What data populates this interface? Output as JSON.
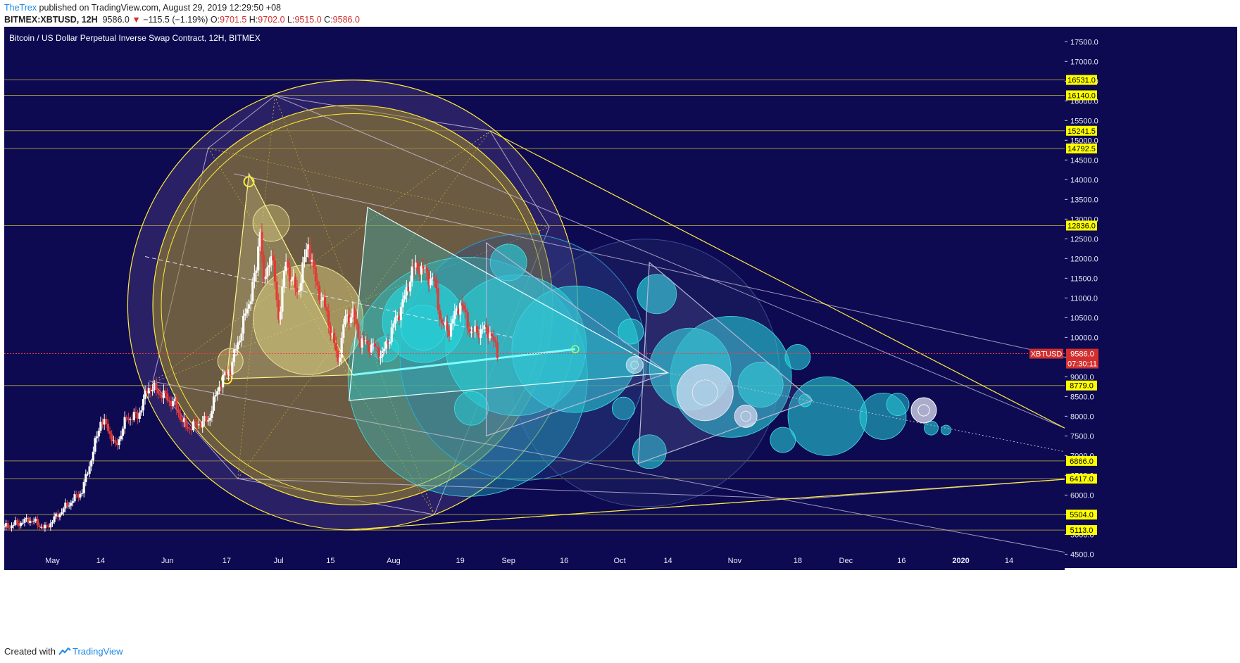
{
  "header": {
    "author": "TheTrex",
    "published": " published on TradingView.com, August 29, 2019 12:29:50 +08",
    "symbol": "BITMEX:XBTUSD, 12H",
    "price": "9586.0",
    "change": "−115.5 (−1.19%)",
    "o_label": "O:",
    "o_val": "9701.5",
    "h_label": "H:",
    "h_val": "9702.0",
    "l_label": "L:",
    "l_val": "9515.0",
    "c_label": "C:",
    "c_val": "9586.0"
  },
  "footer": {
    "created": "Created with",
    "brand": "TradingView"
  },
  "colors": {
    "background": "#0d0a52",
    "bull": "#ffffff",
    "bear": "#e53935",
    "yellow": "#ffeb3b",
    "cyan": "#26d7e5",
    "price_line": "#ff3b3b"
  },
  "chart_data": {
    "type": "candlestick",
    "title": "Bitcoin / US Dollar Perpetual Inverse Swap Contract, 12H, BITMEX",
    "ylim": [
      4150,
      17880
    ],
    "x_range": [
      "2019-04-18",
      "2020-01-29"
    ],
    "y_ticks": [
      4500,
      5000,
      5500,
      6000,
      6500,
      7000,
      7500,
      8000,
      8500,
      9000,
      9500,
      10000,
      10500,
      11000,
      11500,
      12000,
      12500,
      13000,
      13500,
      14000,
      14500,
      15000,
      15500,
      16000,
      16500,
      17000,
      17500
    ],
    "x_ticks": [
      {
        "date": "2019-05-01",
        "label": "May"
      },
      {
        "date": "2019-05-14",
        "label": "14"
      },
      {
        "date": "2019-06-01",
        "label": "Jun"
      },
      {
        "date": "2019-06-17",
        "label": "17"
      },
      {
        "date": "2019-07-01",
        "label": "Jul"
      },
      {
        "date": "2019-07-15",
        "label": "15"
      },
      {
        "date": "2019-08-01",
        "label": "Aug"
      },
      {
        "date": "2019-08-19",
        "label": "19"
      },
      {
        "date": "2019-09-01",
        "label": "Sep"
      },
      {
        "date": "2019-09-16",
        "label": "16"
      },
      {
        "date": "2019-10-01",
        "label": "Oct"
      },
      {
        "date": "2019-10-14",
        "label": "14"
      },
      {
        "date": "2019-11-01",
        "label": "Nov"
      },
      {
        "date": "2019-11-18",
        "label": "18"
      },
      {
        "date": "2019-12-01",
        "label": "Dec"
      },
      {
        "date": "2019-12-16",
        "label": "16"
      },
      {
        "date": "2020-01-01",
        "label": "2020"
      },
      {
        "date": "2020-01-14",
        "label": "14"
      }
    ],
    "price_levels": [
      16531.0,
      16140.0,
      15241.5,
      14792.5,
      12836.0,
      8779.0,
      6866.0,
      6417.0,
      5504.0,
      5113.0
    ],
    "last_price": {
      "symbol": "XBTUSD",
      "value": 9586.0,
      "countdown": "07:30:11"
    },
    "closes_anchor": [
      [
        "2019-04-18",
        5180
      ],
      [
        "2019-04-25",
        5380
      ],
      [
        "2019-04-29",
        5150
      ],
      [
        "2019-05-04",
        5650
      ],
      [
        "2019-05-09",
        6100
      ],
      [
        "2019-05-12",
        7100
      ],
      [
        "2019-05-14",
        7900
      ],
      [
        "2019-05-16",
        7700
      ],
      [
        "2019-05-18",
        7200
      ],
      [
        "2019-05-21",
        7950
      ],
      [
        "2019-05-24",
        8000
      ],
      [
        "2019-05-27",
        8750
      ],
      [
        "2019-05-30",
        8600
      ],
      [
        "2019-06-03",
        8300
      ],
      [
        "2019-06-06",
        7700
      ],
      [
        "2019-06-09",
        7800
      ],
      [
        "2019-06-12",
        7900
      ],
      [
        "2019-06-15",
        8800
      ],
      [
        "2019-06-18",
        9200
      ],
      [
        "2019-06-21",
        10200
      ],
      [
        "2019-06-23",
        10900
      ],
      [
        "2019-06-25",
        11700
      ],
      [
        "2019-06-26",
        12900
      ],
      [
        "2019-06-27",
        11300
      ],
      [
        "2019-06-29",
        12200
      ],
      [
        "2019-07-01",
        10500
      ],
      [
        "2019-07-03",
        11900
      ],
      [
        "2019-07-06",
        11100
      ],
      [
        "2019-07-09",
        12400
      ],
      [
        "2019-07-11",
        11400
      ],
      [
        "2019-07-14",
        10600
      ],
      [
        "2019-07-17",
        9400
      ],
      [
        "2019-07-19",
        10500
      ],
      [
        "2019-07-21",
        10600
      ],
      [
        "2019-07-23",
        9900
      ],
      [
        "2019-07-26",
        9800
      ],
      [
        "2019-07-29",
        9550
      ],
      [
        "2019-08-01",
        10300
      ],
      [
        "2019-08-04",
        11000
      ],
      [
        "2019-08-06",
        11700
      ],
      [
        "2019-08-08",
        11800
      ],
      [
        "2019-08-10",
        11600
      ],
      [
        "2019-08-12",
        11400
      ],
      [
        "2019-08-14",
        10300
      ],
      [
        "2019-08-16",
        10200
      ],
      [
        "2019-08-19",
        10900
      ],
      [
        "2019-08-22",
        10100
      ],
      [
        "2019-08-25",
        10200
      ],
      [
        "2019-08-27",
        10150
      ],
      [
        "2019-08-29",
        9586
      ]
    ]
  }
}
